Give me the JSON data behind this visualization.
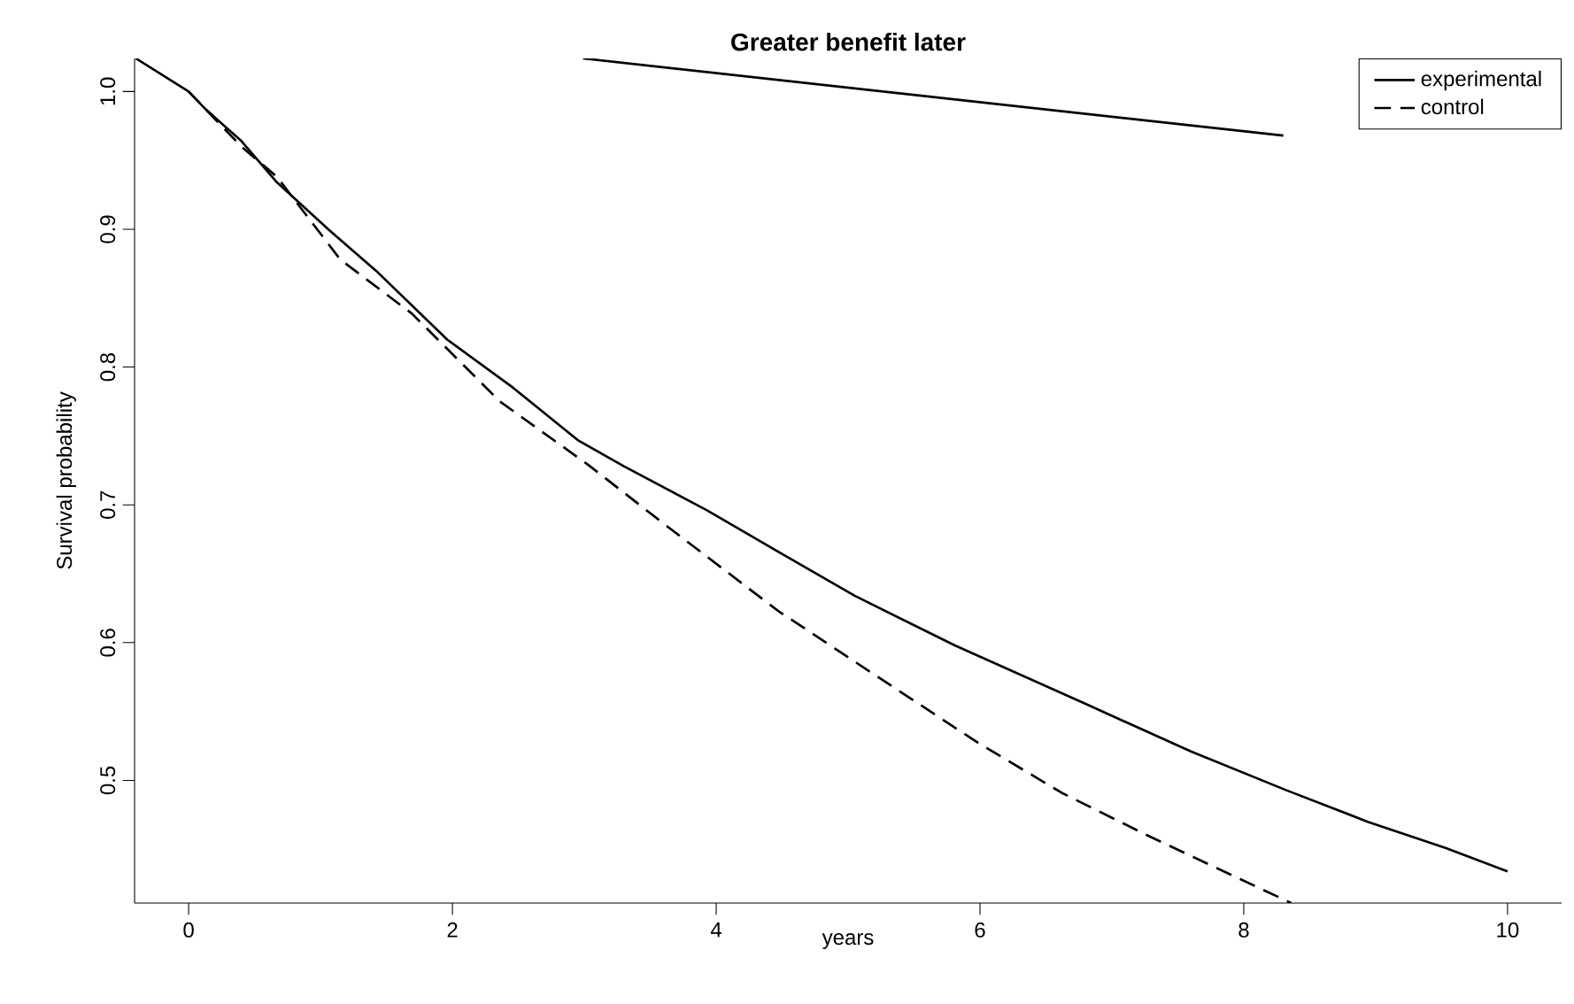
{
  "chart_data": {
    "type": "line",
    "title": "Greater benefit later",
    "xlabel": "years",
    "ylabel": "Survival probability",
    "xlim": [
      -0.41,
      10.41
    ],
    "ylim": [
      0.411,
      1.024
    ],
    "xticks": [
      0,
      2,
      4,
      6,
      8,
      10
    ],
    "yticks": [
      0.5,
      0.6,
      0.7,
      0.8,
      0.9,
      {
        "value": 1.0,
        "label": "1.0"
      }
    ],
    "legend": "top right",
    "series": [
      {
        "name": "experimental",
        "color": "#000000",
        "line_style": "solid",
        "x": [
          -0.4,
          0,
          0.13,
          0.4,
          0.67,
          1.07,
          1.42,
          1.96,
          2.46,
          2.95,
          3.3,
          3.93,
          4.47,
          5.05,
          5.81,
          6.79,
          7.6,
          8.32,
          8.94,
          9.53,
          10.0
        ],
        "values": [
          1.024,
          1.0,
          0.987,
          0.964,
          0.934,
          0.899,
          0.87,
          0.82,
          0.785,
          0.747,
          0.728,
          0.696,
          0.666,
          0.634,
          0.598,
          0.556,
          0.521,
          0.493,
          0.47,
          0.451,
          0.434
        ]
      },
      {
        "name": "control",
        "color": "#000000",
        "line_style": "dashed",
        "x": [
          0,
          0.4,
          0.67,
          1.15,
          1.69,
          2.36,
          3.03,
          3.62,
          4.47,
          5.37,
          5.99,
          6.62,
          7.25,
          7.96,
          8.36
        ],
        "values": [
          1.0,
          0.96,
          0.938,
          0.878,
          0.839,
          0.775,
          0.729,
          0.685,
          0.623,
          0.566,
          0.527,
          0.491,
          0.461,
          0.429,
          0.411
        ]
      },
      {
        "color": "#000000",
        "line_style": "solid",
        "x": [
          2.99,
          8.3
        ],
        "values": [
          1.024,
          0.968
        ]
      }
    ]
  }
}
